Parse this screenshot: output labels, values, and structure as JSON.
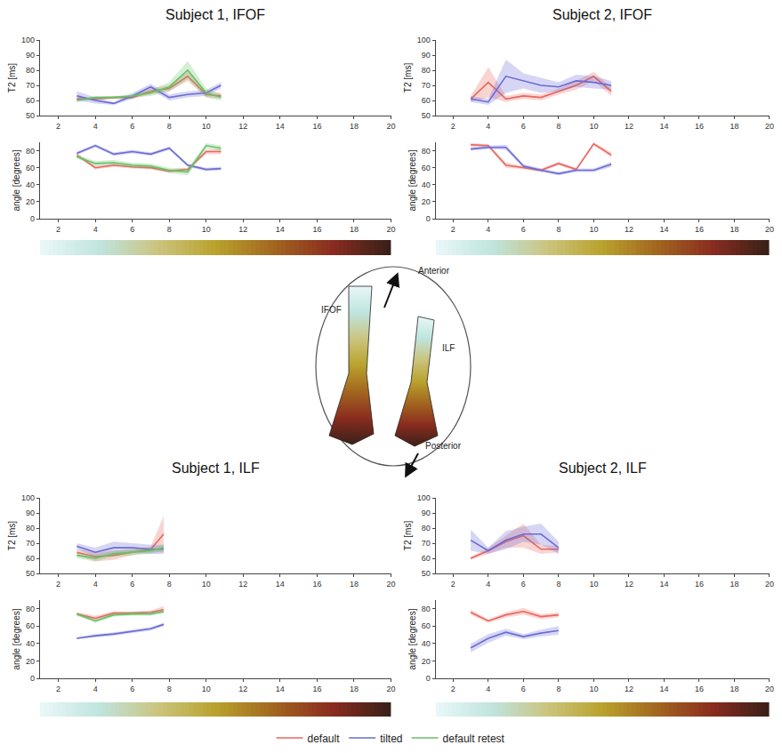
{
  "chart_data": [
    {
      "type": "line",
      "title": "Subject 1, IFOF",
      "legend": "bottom",
      "grid": false,
      "x": [
        3,
        4,
        5,
        6,
        7,
        8,
        9,
        10,
        10.8
      ],
      "xlim": [
        1,
        20
      ],
      "xticks": [
        2,
        4,
        6,
        8,
        10,
        12,
        14,
        16,
        18,
        20
      ],
      "subplots": [
        {
          "y_label": "T2 [ms]",
          "ylim": [
            50,
            100
          ],
          "yticks": [
            50,
            60,
            70,
            80,
            90,
            100
          ],
          "series": [
            {
              "name": "default",
              "color": "#e8675f",
              "values": [
                61,
                61,
                62,
                62,
                66,
                68,
                76,
                64,
                63
              ],
              "spread": [
                1,
                1,
                1,
                1,
                2,
                2,
                3,
                2,
                2
              ]
            },
            {
              "name": "tilted",
              "color": "#6b6bd6",
              "values": [
                63,
                60,
                58,
                63,
                69,
                62,
                64,
                65,
                70
              ],
              "spread": [
                3,
                2,
                1,
                2,
                2,
                2,
                2,
                2,
                2
              ]
            },
            {
              "name": "default retest",
              "color": "#66c266",
              "values": [
                60,
                62,
                62,
                63,
                65,
                69,
                80,
                65,
                62
              ],
              "spread": [
                1,
                1,
                1,
                1,
                2,
                3,
                6,
                3,
                2
              ]
            }
          ]
        },
        {
          "y_label": "angle [degrees]",
          "ylim": [
            0,
            90
          ],
          "yticks": [
            0,
            20,
            40,
            60,
            80
          ],
          "series": [
            {
              "name": "default",
              "color": "#e8675f",
              "values": [
                75,
                60,
                63,
                61,
                60,
                56,
                58,
                79,
                79
              ],
              "spread": [
                2,
                2,
                2,
                2,
                2,
                2,
                2,
                3,
                3
              ]
            },
            {
              "name": "tilted",
              "color": "#6b6bd6",
              "values": [
                77,
                86,
                76,
                79,
                76,
                83,
                63,
                58,
                59
              ],
              "spread": [
                2,
                2,
                2,
                2,
                2,
                2,
                2,
                2,
                2
              ]
            },
            {
              "name": "default retest",
              "color": "#66c266",
              "values": [
                73,
                65,
                66,
                63,
                62,
                57,
                55,
                86,
                83
              ],
              "spread": [
                2,
                3,
                3,
                3,
                3,
                3,
                4,
                3,
                3
              ]
            }
          ]
        }
      ]
    },
    {
      "type": "line",
      "title": "Subject 2, IFOF",
      "grid": false,
      "x": [
        3,
        4,
        5,
        6,
        7,
        8,
        9,
        10,
        11
      ],
      "xlim": [
        1,
        20
      ],
      "xticks": [
        2,
        4,
        6,
        8,
        10,
        12,
        14,
        16,
        18,
        20
      ],
      "subplots": [
        {
          "y_label": "T2 [ms]",
          "ylim": [
            50,
            100
          ],
          "yticks": [
            50,
            60,
            70,
            80,
            90,
            100
          ],
          "series": [
            {
              "name": "default",
              "color": "#e8675f",
              "values": [
                61,
                72,
                61,
                63,
                62,
                66,
                70,
                76,
                66
              ],
              "spread": [
                2,
                10,
                2,
                2,
                2,
                2,
                3,
                3,
                3
              ]
            },
            {
              "name": "tilted",
              "color": "#6b6bd6",
              "values": [
                61,
                59,
                76,
                73,
                70,
                69,
                73,
                72,
                70
              ],
              "spread": [
                2,
                2,
                11,
                5,
                5,
                3,
                4,
                4,
                3
              ]
            }
          ]
        },
        {
          "y_label": "angle [degrees]",
          "ylim": [
            0,
            90
          ],
          "yticks": [
            0,
            20,
            40,
            60,
            80
          ],
          "series": [
            {
              "name": "default",
              "color": "#e8675f",
              "values": [
                87,
                86,
                63,
                60,
                57,
                65,
                58,
                88,
                75
              ],
              "spread": [
                2,
                2,
                3,
                2,
                2,
                2,
                2,
                2,
                3
              ]
            },
            {
              "name": "tilted",
              "color": "#6b6bd6",
              "values": [
                82,
                84,
                84,
                62,
                57,
                53,
                57,
                57,
                64
              ],
              "spread": [
                2,
                2,
                3,
                2,
                2,
                2,
                2,
                2,
                3
              ]
            }
          ]
        }
      ]
    },
    {
      "type": "line",
      "title": "Subject 1, ILF",
      "grid": false,
      "x": [
        3,
        4,
        5,
        6,
        7,
        7.7
      ],
      "xlim": [
        1,
        20
      ],
      "xticks": [
        2,
        4,
        6,
        8,
        10,
        12,
        14,
        16,
        18,
        20
      ],
      "subplots": [
        {
          "y_label": "T2 [ms]",
          "ylim": [
            50,
            100
          ],
          "yticks": [
            50,
            60,
            70,
            80,
            90,
            100
          ],
          "series": [
            {
              "name": "default",
              "color": "#e8675f",
              "values": [
                64,
                61,
                62,
                64,
                66,
                76
              ],
              "spread": [
                2,
                3,
                3,
                2,
                2,
                12
              ]
            },
            {
              "name": "tilted",
              "color": "#6b6bd6",
              "values": [
                68,
                64,
                67,
                67,
                66,
                66
              ],
              "spread": [
                2,
                3,
                4,
                3,
                3,
                3
              ]
            },
            {
              "name": "default retest",
              "color": "#66c266",
              "values": [
                62,
                60,
                63,
                64,
                65,
                67
              ],
              "spread": [
                2,
                2,
                2,
                2,
                2,
                2
              ]
            }
          ]
        },
        {
          "y_label": "angle [degrees]",
          "ylim": [
            0,
            90
          ],
          "yticks": [
            0,
            20,
            40,
            60,
            80
          ],
          "series": [
            {
              "name": "default",
              "color": "#e8675f",
              "values": [
                74,
                69,
                75,
                75,
                76,
                79
              ],
              "spread": [
                2,
                3,
                2,
                2,
                2,
                4
              ]
            },
            {
              "name": "tilted",
              "color": "#6b6bd6",
              "values": [
                46,
                49,
                51,
                54,
                57,
                62
              ],
              "spread": [
                1,
                2,
                2,
                2,
                2,
                2
              ]
            },
            {
              "name": "default retest",
              "color": "#66c266",
              "values": [
                74,
                66,
                73,
                74,
                74,
                77
              ],
              "spread": [
                2,
                2,
                2,
                2,
                2,
                2
              ]
            }
          ]
        }
      ]
    },
    {
      "type": "line",
      "title": "Subject 2, ILF",
      "grid": false,
      "x": [
        3,
        4,
        5,
        6,
        7,
        8
      ],
      "xlim": [
        1,
        20
      ],
      "xticks": [
        2,
        4,
        6,
        8,
        10,
        12,
        14,
        16,
        18,
        20
      ],
      "subplots": [
        {
          "y_label": "T2 [ms]",
          "ylim": [
            50,
            100
          ],
          "yticks": [
            50,
            60,
            70,
            80,
            90,
            100
          ],
          "series": [
            {
              "name": "default",
              "color": "#e8675f",
              "values": [
                60,
                65,
                71,
                75,
                66,
                66
              ],
              "spread": [
                1,
                2,
                4,
                8,
                3,
                2
              ]
            },
            {
              "name": "tilted",
              "color": "#6b6bd6",
              "values": [
                72,
                65,
                72,
                76,
                76,
                67
              ],
              "spread": [
                7,
                2,
                6,
                5,
                7,
                4
              ]
            }
          ]
        },
        {
          "y_label": "angle [degrees]",
          "ylim": [
            0,
            90
          ],
          "yticks": [
            0,
            20,
            40,
            60,
            80
          ],
          "series": [
            {
              "name": "default",
              "color": "#e8675f",
              "values": [
                76,
                66,
                73,
                77,
                71,
                73
              ],
              "spread": [
                3,
                2,
                3,
                4,
                3,
                3
              ]
            },
            {
              "name": "tilted",
              "color": "#6b6bd6",
              "values": [
                35,
                46,
                53,
                48,
                52,
                55
              ],
              "spread": [
                5,
                5,
                4,
                3,
                4,
                5
              ]
            }
          ]
        }
      ]
    }
  ],
  "colorbar": {
    "colors": [
      "#e8f7f8",
      "#bfe4de",
      "#cbc47e",
      "#b9a22c",
      "#a2661f",
      "#8a2c1f",
      "#3a2018"
    ]
  },
  "diagram": {
    "labels": {
      "tract_left": "IFOF",
      "front": "Anterior",
      "tract_right": "ILF",
      "back": "Posterior"
    }
  }
}
